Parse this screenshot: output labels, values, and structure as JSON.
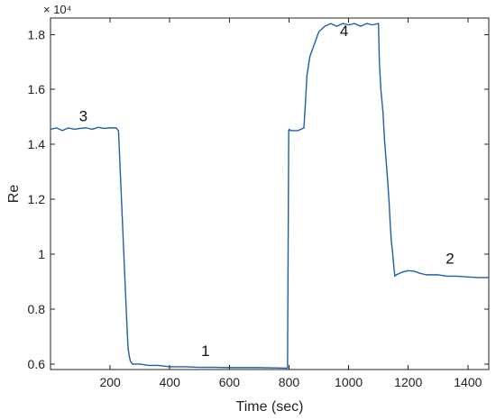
{
  "chart_data": {
    "type": "line",
    "title": "",
    "xlabel": "Time (sec)",
    "ylabel": "Re",
    "xlim": [
      0,
      1470
    ],
    "ylim": [
      5800,
      18600
    ],
    "y_exponent_label": "× 10⁴",
    "y_scale_divisor": 10000,
    "xticks": [
      200,
      400,
      600,
      800,
      1000,
      1200,
      1400
    ],
    "yticks": [
      6000,
      8000,
      10000,
      12000,
      14000,
      16000,
      18000
    ],
    "ytick_labels": [
      "0.6",
      "0.8",
      "1",
      "1.2",
      "1.4",
      "1.6",
      "1.8"
    ],
    "grid": false,
    "line_color": "#1f5fa8",
    "series": [
      {
        "x": [
          0,
          20,
          40,
          60,
          80,
          100,
          120,
          140,
          160,
          180,
          200,
          220,
          228,
          232,
          236,
          240,
          244,
          248,
          252,
          256,
          260,
          264,
          268,
          275,
          300,
          330,
          360,
          400,
          450,
          500,
          550,
          600,
          650,
          700,
          750,
          795,
          799,
          801,
          805,
          830,
          850,
          855,
          860,
          870,
          880,
          890,
          900,
          920,
          940,
          960,
          980,
          1000,
          1020,
          1040,
          1060,
          1080,
          1100,
          1103,
          1108,
          1115,
          1120,
          1125,
          1130,
          1135,
          1140,
          1143,
          1148,
          1152,
          1155,
          1160,
          1170,
          1180,
          1200,
          1220,
          1240,
          1260,
          1280,
          1300,
          1330,
          1360,
          1400,
          1430,
          1470
        ],
        "y": [
          14550,
          14600,
          14500,
          14600,
          14550,
          14580,
          14600,
          14550,
          14620,
          14580,
          14600,
          14600,
          14500,
          13500,
          12500,
          11500,
          10500,
          9500,
          8500,
          7500,
          6600,
          6300,
          6100,
          6000,
          6000,
          5950,
          5950,
          5900,
          5900,
          5880,
          5880,
          5870,
          5870,
          5870,
          5860,
          5850,
          14500,
          14550,
          14500,
          14500,
          14600,
          15500,
          16500,
          17200,
          17500,
          17800,
          18100,
          18300,
          18400,
          18300,
          18400,
          18350,
          18400,
          18300,
          18400,
          18350,
          18400,
          17000,
          16000,
          15200,
          14200,
          13500,
          12800,
          12000,
          11000,
          10500,
          10000,
          9500,
          9200,
          9250,
          9300,
          9350,
          9400,
          9380,
          9300,
          9250,
          9250,
          9250,
          9200,
          9200,
          9170,
          9150,
          9150
        ]
      }
    ],
    "annotations": [
      {
        "text": "1",
        "x": 520,
        "y": 6300
      },
      {
        "text": "2",
        "x": 1340,
        "y": 9650
      },
      {
        "text": "3",
        "x": 110,
        "y": 14850
      },
      {
        "text": "4",
        "x": 985,
        "y": 17950
      }
    ]
  }
}
